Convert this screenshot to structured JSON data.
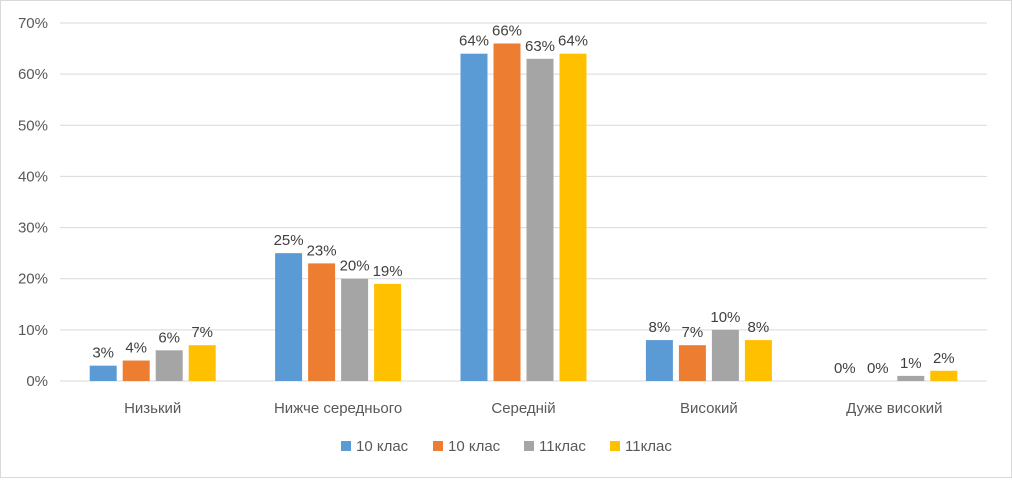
{
  "chart_data": {
    "type": "bar",
    "title": "",
    "xlabel": "",
    "ylabel": "",
    "categories": [
      "Низький",
      "Нижче середнього",
      "Середній",
      "Високий",
      "Дуже високий"
    ],
    "series": [
      {
        "name": "10 клас",
        "color": "#5B9BD5",
        "values": [
          3,
          25,
          64,
          8,
          0
        ],
        "labels": [
          "3%",
          "25%",
          "64%",
          "8%",
          "0%"
        ]
      },
      {
        "name": "10 клас",
        "color": "#ED7D31",
        "values": [
          4,
          23,
          66,
          7,
          0
        ],
        "labels": [
          "4%",
          "23%",
          "66%",
          "7%",
          "0%"
        ]
      },
      {
        "name": "11клас",
        "color": "#A5A5A5",
        "values": [
          6,
          20,
          63,
          10,
          1
        ],
        "labels": [
          "6%",
          "20%",
          "63%",
          "10%",
          "1%"
        ]
      },
      {
        "name": "11клас",
        "color": "#FFC000",
        "values": [
          7,
          19,
          64,
          8,
          2
        ],
        "labels": [
          "7%",
          "19%",
          "64%",
          "8%",
          "2%"
        ]
      }
    ],
    "ylim": [
      0,
      70
    ],
    "yticks": [
      0,
      10,
      20,
      30,
      40,
      50,
      60,
      70
    ],
    "ytick_labels": [
      "0%",
      "10%",
      "20%",
      "30%",
      "40%",
      "50%",
      "60%",
      "70%"
    ],
    "grid": true,
    "legend": "bottom"
  }
}
